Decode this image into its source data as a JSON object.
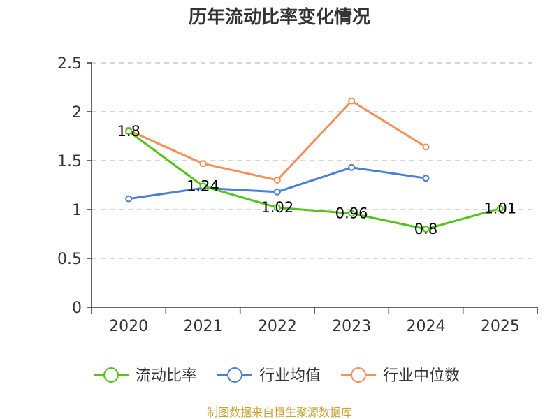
{
  "chart_data": {
    "type": "line",
    "title": "历年流动比率变化情况",
    "categories": [
      "2020",
      "2021",
      "2022",
      "2023",
      "2024",
      "2025"
    ],
    "ylim": [
      0,
      2.5
    ],
    "yticks": [
      "0",
      "0.5",
      "1",
      "1.5",
      "2",
      "2.5"
    ],
    "series": [
      {
        "name": "流动比率",
        "color": "#52c41a",
        "values": [
          1.8,
          1.24,
          1.02,
          0.96,
          0.8,
          1.01
        ],
        "labels": [
          "1.8",
          "1.24",
          "1.02",
          "0.96",
          "0.8",
          "1.01"
        ]
      },
      {
        "name": "行业均值",
        "color": "#4a7fd8",
        "values": [
          1.11,
          1.22,
          1.18,
          1.43,
          1.32,
          null
        ]
      },
      {
        "name": "行业中位数",
        "color": "#f6905a",
        "values": [
          1.81,
          1.47,
          1.3,
          2.11,
          1.64,
          null
        ]
      }
    ],
    "legend_position": "bottom",
    "grid": true
  },
  "source": "制图数据来自恒生聚源数据库"
}
